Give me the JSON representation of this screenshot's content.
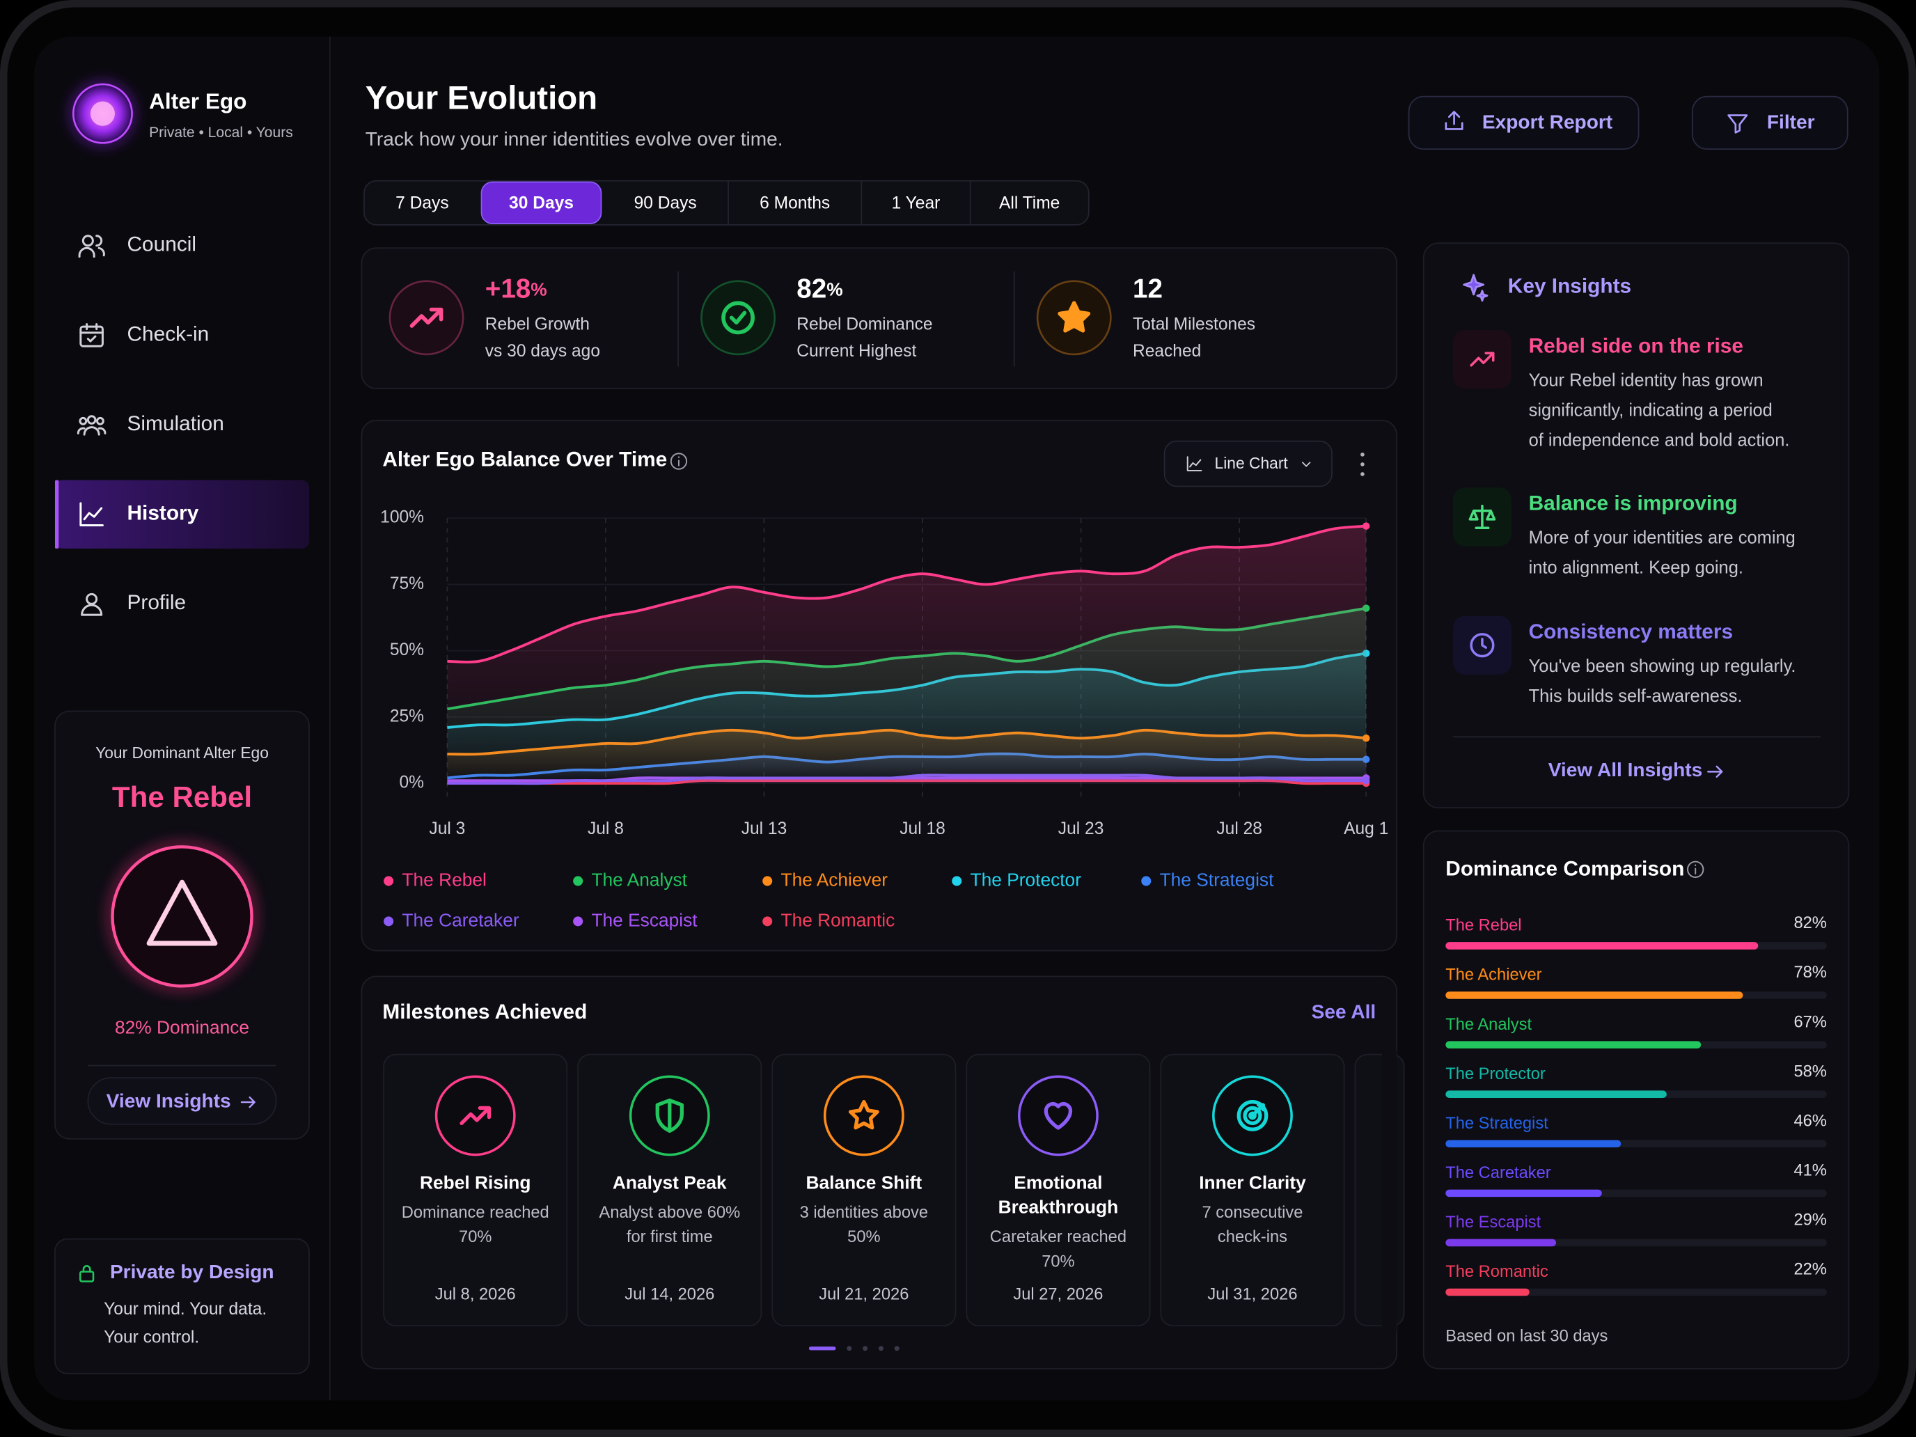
{
  "app": {
    "name": "Alter Ego",
    "tagline": "Private • Local • Yours"
  },
  "nav": [
    "Council",
    "Check-in",
    "Simulation",
    "History",
    "Profile"
  ],
  "nav_active": 3,
  "dominant": {
    "heading": "Your Dominant Alter Ego",
    "name": "The Rebel",
    "dominance": "82% Dominance",
    "link": "View Insights"
  },
  "privacy": {
    "title": "Private by Design",
    "lines": [
      "Your mind. Your data.",
      "Your control."
    ]
  },
  "header": {
    "title": "Your Evolution",
    "subtitle": "Track how your inner identities evolve over time.",
    "export": "Export Report",
    "filter": "Filter"
  },
  "ranges": [
    "7 Days",
    "30 Days",
    "90 Days",
    "6 Months",
    "1 Year",
    "All Time"
  ],
  "range_active": 1,
  "stats": [
    {
      "value": "+18",
      "unit": "%",
      "label": "Rebel Growth",
      "sub": "vs 30 days ago"
    },
    {
      "value": "82",
      "unit": "%",
      "label": "Rebel Dominance",
      "sub": "Current Highest"
    },
    {
      "value": "12",
      "label": "Total Milestones",
      "sub": "Reached"
    }
  ],
  "chart_data": [
    {
      "type": "line",
      "title": "Alter Ego Balance Over Time",
      "control": "Line Chart",
      "categories": [
        "Jul 3",
        null,
        null,
        null,
        null,
        "Jul 8",
        null,
        null,
        null,
        null,
        "Jul 13",
        null,
        null,
        null,
        null,
        "Jul 18",
        null,
        null,
        null,
        null,
        "Jul 23",
        null,
        null,
        null,
        null,
        "Jul 28",
        null,
        null,
        null,
        "Aug 1"
      ],
      "ylim": [
        0,
        100
      ],
      "yticks": [
        {
          "value": 0,
          "label": "0%"
        },
        {
          "value": 25,
          "label": "25%"
        },
        {
          "value": 50,
          "label": "50%"
        },
        {
          "value": 75,
          "label": "75%"
        },
        {
          "value": 100,
          "label": "100%"
        }
      ],
      "series": [
        {
          "name": "The Rebel",
          "color": "#ff3d8b",
          "values": [
            46,
            46,
            50,
            55,
            60,
            63,
            65,
            68,
            71,
            74,
            72,
            70,
            70,
            73,
            77,
            79,
            77,
            75,
            77,
            79,
            80,
            79,
            80,
            86,
            89,
            89,
            90,
            93,
            96,
            97
          ]
        },
        {
          "name": "The Analyst",
          "color": "#22c55e",
          "values": [
            28,
            30,
            32,
            34,
            36,
            37,
            39,
            42,
            44,
            45,
            46,
            45,
            44,
            45,
            47,
            48,
            49,
            48,
            46,
            48,
            52,
            56,
            58,
            59,
            58,
            58,
            60,
            62,
            64,
            66
          ]
        },
        {
          "name": "The Achiever",
          "color": "#ff8c1a",
          "values": [
            11,
            11,
            12,
            13,
            14,
            15,
            15,
            17,
            19,
            20,
            19,
            17,
            18,
            19,
            20,
            18,
            17,
            18,
            19,
            18,
            17,
            18,
            20,
            19,
            18,
            18,
            19,
            18,
            18,
            17
          ]
        },
        {
          "name": "The Protector",
          "color": "#22d3ee",
          "values": [
            21,
            22,
            22,
            23,
            24,
            24,
            26,
            29,
            32,
            34,
            34,
            33,
            33,
            34,
            35,
            37,
            40,
            41,
            42,
            42,
            43,
            42,
            38,
            37,
            40,
            42,
            43,
            44,
            47,
            49
          ]
        },
        {
          "name": "The Strategist",
          "color": "#3b82f6",
          "values": [
            2,
            3,
            3,
            4,
            5,
            5,
            6,
            7,
            8,
            9,
            10,
            9,
            8,
            9,
            10,
            10,
            10,
            11,
            11,
            10,
            10,
            10,
            11,
            10,
            9,
            9,
            10,
            9,
            9,
            9
          ]
        },
        {
          "name": "The Caretaker",
          "color": "#8b5cf6",
          "values": [
            0,
            0,
            0,
            0,
            1,
            1,
            1,
            1,
            2,
            2,
            2,
            2,
            2,
            2,
            2,
            3,
            3,
            3,
            3,
            3,
            3,
            3,
            3,
            2,
            2,
            2,
            2,
            1,
            1,
            1
          ]
        },
        {
          "name": "The Escapist",
          "color": "#a855f7",
          "values": [
            1,
            1,
            1,
            1,
            1,
            1,
            2,
            2,
            2,
            2,
            2,
            2,
            2,
            2,
            2,
            2,
            2,
            2,
            2,
            2,
            2,
            2,
            2,
            2,
            2,
            2,
            2,
            2,
            2,
            2
          ]
        },
        {
          "name": "The Romantic",
          "color": "#f43f5e",
          "values": [
            0,
            0,
            0,
            0,
            0,
            0,
            0,
            0,
            1,
            1,
            1,
            1,
            1,
            1,
            1,
            1,
            1,
            1,
            1,
            1,
            1,
            1,
            1,
            1,
            1,
            1,
            1,
            0,
            0,
            0
          ]
        }
      ]
    },
    {
      "type": "bar",
      "title": "Dominance Comparison",
      "note": "Based on last 30 days",
      "xlim": [
        0,
        100
      ],
      "categories": [
        "The Rebel",
        "The Achiever",
        "The Analyst",
        "The Protector",
        "The Strategist",
        "The Caretaker",
        "The Escapist",
        "The Romantic"
      ],
      "values": [
        82,
        78,
        67,
        58,
        46,
        41,
        29,
        22
      ],
      "value_labels": [
        "82%",
        "78%",
        "67%",
        "58%",
        "46%",
        "41%",
        "29%",
        "22%"
      ],
      "colors": [
        "#ff3d8b",
        "#ff8c1a",
        "#22c55e",
        "#14b8a6",
        "#2563eb",
        "#6d4aff",
        "#7c3aed",
        "#f43f5e"
      ]
    }
  ],
  "insights": {
    "title": "Key Insights",
    "link": "View All Insights",
    "items": [
      {
        "title": "Rebel side on the rise",
        "lines": [
          "Your Rebel identity has grown",
          "significantly, indicating a period",
          "of independence and bold action."
        ]
      },
      {
        "title": "Balance is improving",
        "lines": [
          "More of your identities are coming",
          "into alignment. Keep going."
        ]
      },
      {
        "title": "Consistency matters",
        "lines": [
          "You've been showing up regularly.",
          "This builds self-awareness."
        ]
      }
    ]
  },
  "milestones": {
    "title": "Milestones Achieved",
    "link": "See All",
    "items": [
      {
        "title": [
          "Rebel Rising"
        ],
        "lines": [
          "Dominance reached",
          "70%"
        ],
        "date": "Jul 8, 2026"
      },
      {
        "title": [
          "Analyst Peak"
        ],
        "lines": [
          "Analyst above 60%",
          "for first time"
        ],
        "date": "Jul 14, 2026"
      },
      {
        "title": [
          "Balance Shift"
        ],
        "lines": [
          "3 identities above",
          "50%"
        ],
        "date": "Jul 21, 2026"
      },
      {
        "title": [
          "Emotional",
          "Breakthrough"
        ],
        "lines": [
          "Caretaker reached",
          "70%"
        ],
        "date": "Jul 27, 2026"
      },
      {
        "title": [
          "Inner Clarity"
        ],
        "lines": [
          "7 consecutive",
          "check-ins"
        ],
        "date": "Jul 31, 2026"
      }
    ]
  }
}
